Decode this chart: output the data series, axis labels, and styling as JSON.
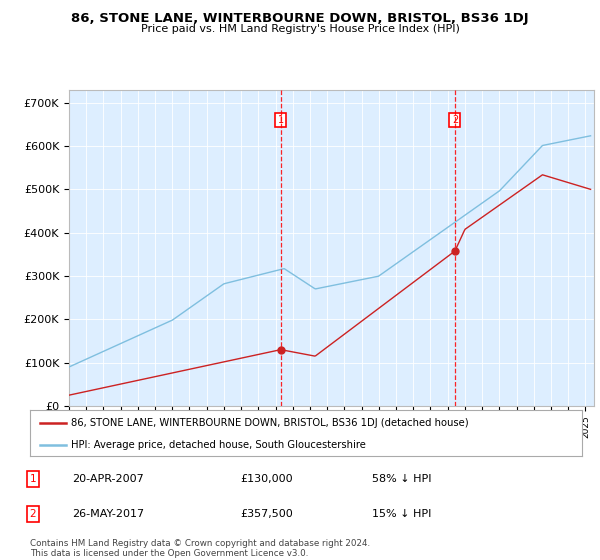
{
  "title": "86, STONE LANE, WINTERBOURNE DOWN, BRISTOL, BS36 1DJ",
  "subtitle": "Price paid vs. HM Land Registry's House Price Index (HPI)",
  "ylabel_ticks": [
    "£0",
    "£100K",
    "£200K",
    "£300K",
    "£400K",
    "£500K",
    "£600K",
    "£700K"
  ],
  "ytick_values": [
    0,
    100000,
    200000,
    300000,
    400000,
    500000,
    600000,
    700000
  ],
  "ylim": [
    0,
    730000
  ],
  "xlim_start": 1995.0,
  "xlim_end": 2025.5,
  "hpi_color": "#7fbfdf",
  "price_color": "#cc2222",
  "marker1_date": 2007.3,
  "marker1_price": 130000,
  "marker2_date": 2017.42,
  "marker2_price": 357500,
  "legend_line1": "86, STONE LANE, WINTERBOURNE DOWN, BRISTOL, BS36 1DJ (detached house)",
  "legend_line2": "HPI: Average price, detached house, South Gloucestershire",
  "footer": "Contains HM Land Registry data © Crown copyright and database right 2024.\nThis data is licensed under the Open Government Licence v3.0.",
  "plot_bg_color": "#ddeeff"
}
